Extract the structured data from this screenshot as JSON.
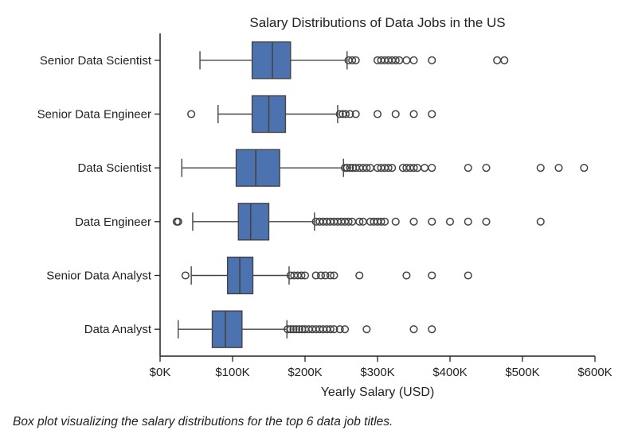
{
  "chart_data": {
    "type": "boxplot",
    "orientation": "horizontal",
    "title": "Salary Distributions of Data Jobs in the US",
    "xlabel": "Yearly Salary (USD)",
    "ylabel": "",
    "xlim": [
      0,
      600000
    ],
    "xticks": [
      0,
      100000,
      200000,
      300000,
      400000,
      500000,
      600000
    ],
    "xtick_labels": [
      "$0K",
      "$100K",
      "$200K",
      "$300K",
      "$400K",
      "$500K",
      "$600K"
    ],
    "grid": false,
    "box_color": "#4c72b0",
    "categories": [
      "Senior Data Scientist",
      "Senior Data Engineer",
      "Data Scientist",
      "Data Engineer",
      "Senior Data Analyst",
      "Data Analyst"
    ],
    "boxes": [
      {
        "label": "Senior Data Scientist",
        "whisker_low": 55000,
        "q1": 127000,
        "median": 155000,
        "q3": 180000,
        "whisker_high": 258000,
        "outliers": [
          260000,
          265000,
          270000,
          300000,
          305000,
          310000,
          315000,
          320000,
          325000,
          330000,
          340000,
          350000,
          375000,
          465000,
          475000
        ]
      },
      {
        "label": "Senior Data Engineer",
        "whisker_low": 80000,
        "q1": 127000,
        "median": 150000,
        "q3": 173000,
        "whisker_high": 245000,
        "outliers": [
          43000,
          248000,
          252000,
          256000,
          262000,
          270000,
          300000,
          325000,
          350000,
          375000
        ]
      },
      {
        "label": "Data Scientist",
        "whisker_low": 30000,
        "q1": 105000,
        "median": 132000,
        "q3": 165000,
        "whisker_high": 253000,
        "outliers": [
          255000,
          258000,
          262000,
          266000,
          270000,
          275000,
          280000,
          285000,
          290000,
          300000,
          305000,
          310000,
          315000,
          320000,
          335000,
          340000,
          345000,
          350000,
          355000,
          365000,
          375000,
          425000,
          450000,
          525000,
          550000,
          585000
        ]
      },
      {
        "label": "Data Engineer",
        "whisker_low": 45000,
        "q1": 108000,
        "median": 125000,
        "q3": 150000,
        "whisker_high": 213000,
        "outliers": [
          23000,
          25000,
          215000,
          220000,
          225000,
          230000,
          235000,
          240000,
          245000,
          250000,
          255000,
          260000,
          265000,
          275000,
          280000,
          290000,
          295000,
          300000,
          305000,
          310000,
          325000,
          350000,
          375000,
          400000,
          425000,
          450000,
          525000
        ]
      },
      {
        "label": "Senior Data Analyst",
        "whisker_low": 43000,
        "q1": 93000,
        "median": 110000,
        "q3": 128000,
        "whisker_high": 178000,
        "outliers": [
          35000,
          180000,
          185000,
          190000,
          195000,
          200000,
          215000,
          222000,
          228000,
          235000,
          240000,
          275000,
          340000,
          375000,
          425000
        ]
      },
      {
        "label": "Data Analyst",
        "whisker_low": 25000,
        "q1": 72000,
        "median": 90000,
        "q3": 113000,
        "whisker_high": 175000,
        "outliers": [
          176000,
          180000,
          184000,
          188000,
          192000,
          196000,
          200000,
          205000,
          210000,
          215000,
          220000,
          225000,
          230000,
          235000,
          240000,
          248000,
          255000,
          285000,
          350000,
          375000
        ]
      }
    ]
  },
  "caption": "Box plot visualizing the salary distributions for the top 6 data job titles."
}
